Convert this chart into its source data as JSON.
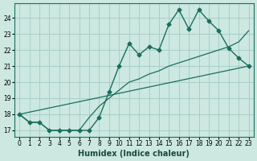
{
  "xlabel": "Humidex (Indice chaleur)",
  "bg_color": "#cce8e0",
  "grid_color": "#a8cfc8",
  "line_color": "#1a6e5e",
  "xlim": [
    -0.5,
    23.5
  ],
  "ylim": [
    16.6,
    24.9
  ],
  "xticks": [
    0,
    1,
    2,
    3,
    4,
    5,
    6,
    7,
    8,
    9,
    10,
    11,
    12,
    13,
    14,
    15,
    16,
    17,
    18,
    19,
    20,
    21,
    22,
    23
  ],
  "yticks": [
    17,
    18,
    19,
    20,
    21,
    22,
    23,
    24
  ],
  "line1_x": [
    0,
    1,
    2,
    3,
    4,
    5,
    6,
    7,
    8,
    9,
    10,
    11,
    12,
    13,
    14,
    15,
    16,
    17,
    18,
    19,
    20,
    21,
    22,
    23
  ],
  "line1_y": [
    18.0,
    17.5,
    17.5,
    17.0,
    17.0,
    17.0,
    17.0,
    17.0,
    17.8,
    19.4,
    21.0,
    22.4,
    21.7,
    22.2,
    22.0,
    23.6,
    24.5,
    23.3,
    24.5,
    23.8,
    23.2,
    22.1,
    21.5,
    21.0
  ],
  "line2_x": [
    0,
    1,
    2,
    3,
    4,
    5,
    6,
    7,
    8,
    9,
    10,
    11,
    12,
    13,
    14,
    15,
    16,
    17,
    18,
    19,
    20,
    21,
    22,
    23
  ],
  "line2_y": [
    18.0,
    17.5,
    17.5,
    17.0,
    17.0,
    17.0,
    17.0,
    17.8,
    18.5,
    19.0,
    19.5,
    20.0,
    20.2,
    20.5,
    20.7,
    21.0,
    21.2,
    21.4,
    21.6,
    21.8,
    22.0,
    22.2,
    22.5,
    23.2
  ],
  "line3_x": [
    0,
    23
  ],
  "line3_y": [
    18.0,
    21.0
  ],
  "marker": "D",
  "markersize": 2.5
}
